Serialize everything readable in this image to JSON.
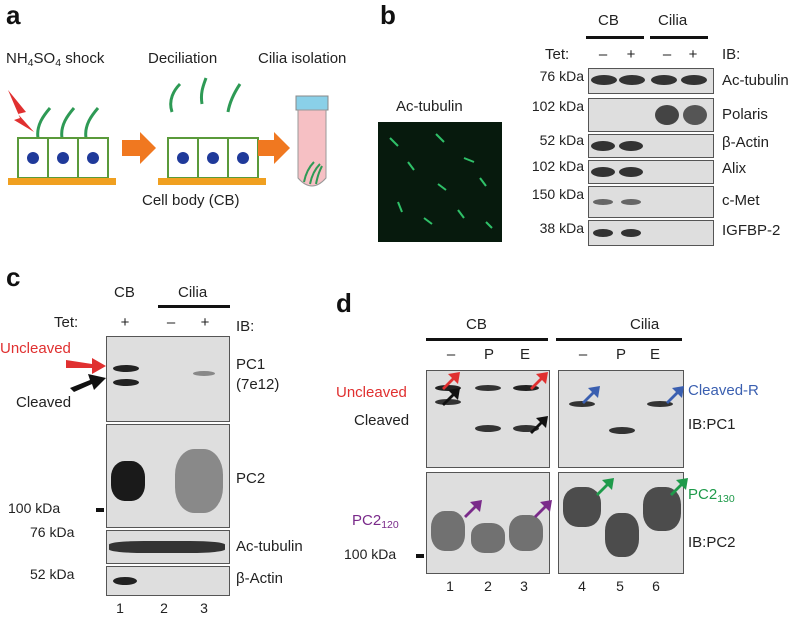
{
  "panels": {
    "a": "a",
    "b": "b",
    "c": "c",
    "d": "d"
  },
  "a": {
    "shock_main": "NH",
    "shock_sub1": "4",
    "shock_mid": "SO",
    "shock_sub2": "4",
    "shock_tail": " shock",
    "deciliation": "Deciliation",
    "cilia_isolation": "Cilia isolation",
    "cell_body": "Cell body (CB)"
  },
  "b": {
    "micrograph_label": "Ac-tubulin",
    "group_cb": "CB",
    "group_cilia": "Cilia",
    "tet_label": "Tet:",
    "tet_values": [
      "–",
      "+",
      "–",
      "+"
    ],
    "ib_label": "IB:",
    "rows": [
      {
        "mw": "76 kDa",
        "target": "Ac-tubulin"
      },
      {
        "mw": "102 kDa",
        "target": "Polaris"
      },
      {
        "mw": "52 kDa",
        "target": "β-Actin"
      },
      {
        "mw": "102 kDa",
        "target": "Alix"
      },
      {
        "mw": "150 kDa",
        "target": "c-Met"
      },
      {
        "mw": "38 kDa",
        "target": "IGFBP-2"
      }
    ]
  },
  "c": {
    "group_cb": "CB",
    "group_cilia": "Cilia",
    "tet_label": "Tet:",
    "tet_values": [
      "+",
      "–",
      "+"
    ],
    "ib_label": "IB:",
    "uncleaved": "Uncleaved",
    "cleaved": "Cleaved",
    "pc1_line1": "PC1",
    "pc1_line2": "(7e12)",
    "pc2": "PC2",
    "mw_100": "100 kDa",
    "mw_76": "76 kDa",
    "mw_52": "52 kDa",
    "ac_tubulin": "Ac-tubulin",
    "beta_actin": "β-Actin",
    "lanes": [
      "1",
      "2",
      "3"
    ],
    "colors": {
      "uncleaved": "#e03030",
      "cleaved": "#111111"
    }
  },
  "d": {
    "group_cb": "CB",
    "group_cilia": "Cilia",
    "treatments": [
      "–",
      "P",
      "E",
      "–",
      "P",
      "E"
    ],
    "uncleaved": "Uncleaved",
    "cleaved": "Cleaved",
    "cleaved_r": "Cleaved-R",
    "ib_pc1": "IB:PC1",
    "ib_pc2": "IB:PC2",
    "pc2_120_main": "PC2",
    "pc2_120_sub": "120",
    "pc2_130_main": "PC2",
    "pc2_130_sub": "130",
    "mw_100": "100 kDa",
    "lanes": [
      "1",
      "2",
      "3",
      "4",
      "5",
      "6"
    ],
    "colors": {
      "red": "#e03030",
      "black": "#111111",
      "blue": "#3a5fb0",
      "purple": "#7a2a8a",
      "green": "#1e9a4a"
    }
  }
}
